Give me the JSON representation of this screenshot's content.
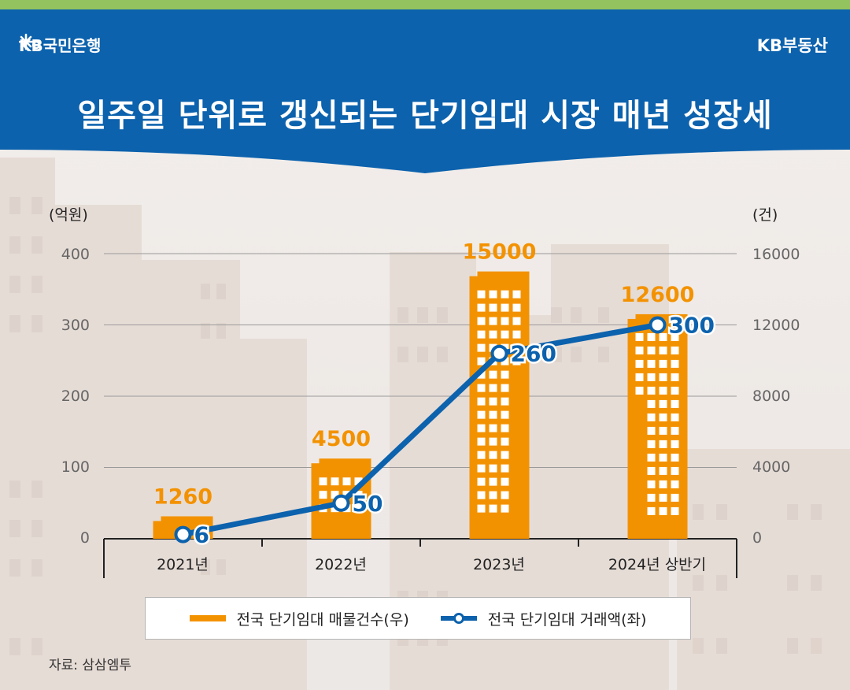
{
  "header": {
    "brand_left": "KB국민은행",
    "brand_right": "KB부동산",
    "title": "일주일 단위로 갱신되는 단기임대 시장 매년 성장세"
  },
  "colors": {
    "header_blue": "#0c62ad",
    "top_green": "#93c35f",
    "bar_orange": "#f39200",
    "line_blue": "#0c62ad"
  },
  "chart_data": {
    "type": "bar",
    "categories": [
      "2021년",
      "2022년",
      "2023년",
      "2024년 상반기"
    ],
    "left_axis": {
      "unit": "(억원)",
      "ylim": [
        0,
        400
      ],
      "ticks": [
        "0",
        "100",
        "200",
        "300",
        "400"
      ]
    },
    "right_axis": {
      "unit": "(건)",
      "ylim": [
        0,
        16000
      ],
      "ticks": [
        "0",
        "4000",
        "8000",
        "12000",
        "16000"
      ]
    },
    "series": [
      {
        "name": "전국 단기임대 매물건수(우)",
        "type": "bar",
        "axis": "right",
        "values": [
          1260,
          4500,
          15000,
          12600
        ],
        "labels": [
          "1260",
          "4500",
          "15000",
          "12600"
        ]
      },
      {
        "name": "전국 단기임대 거래액(좌)",
        "type": "line",
        "axis": "left",
        "values": [
          6,
          50,
          260,
          300
        ],
        "labels": [
          "6",
          "50",
          "260",
          "300"
        ]
      }
    ],
    "grid": true,
    "legend_position": "bottom"
  },
  "source": "자료: 삼삼엠투"
}
